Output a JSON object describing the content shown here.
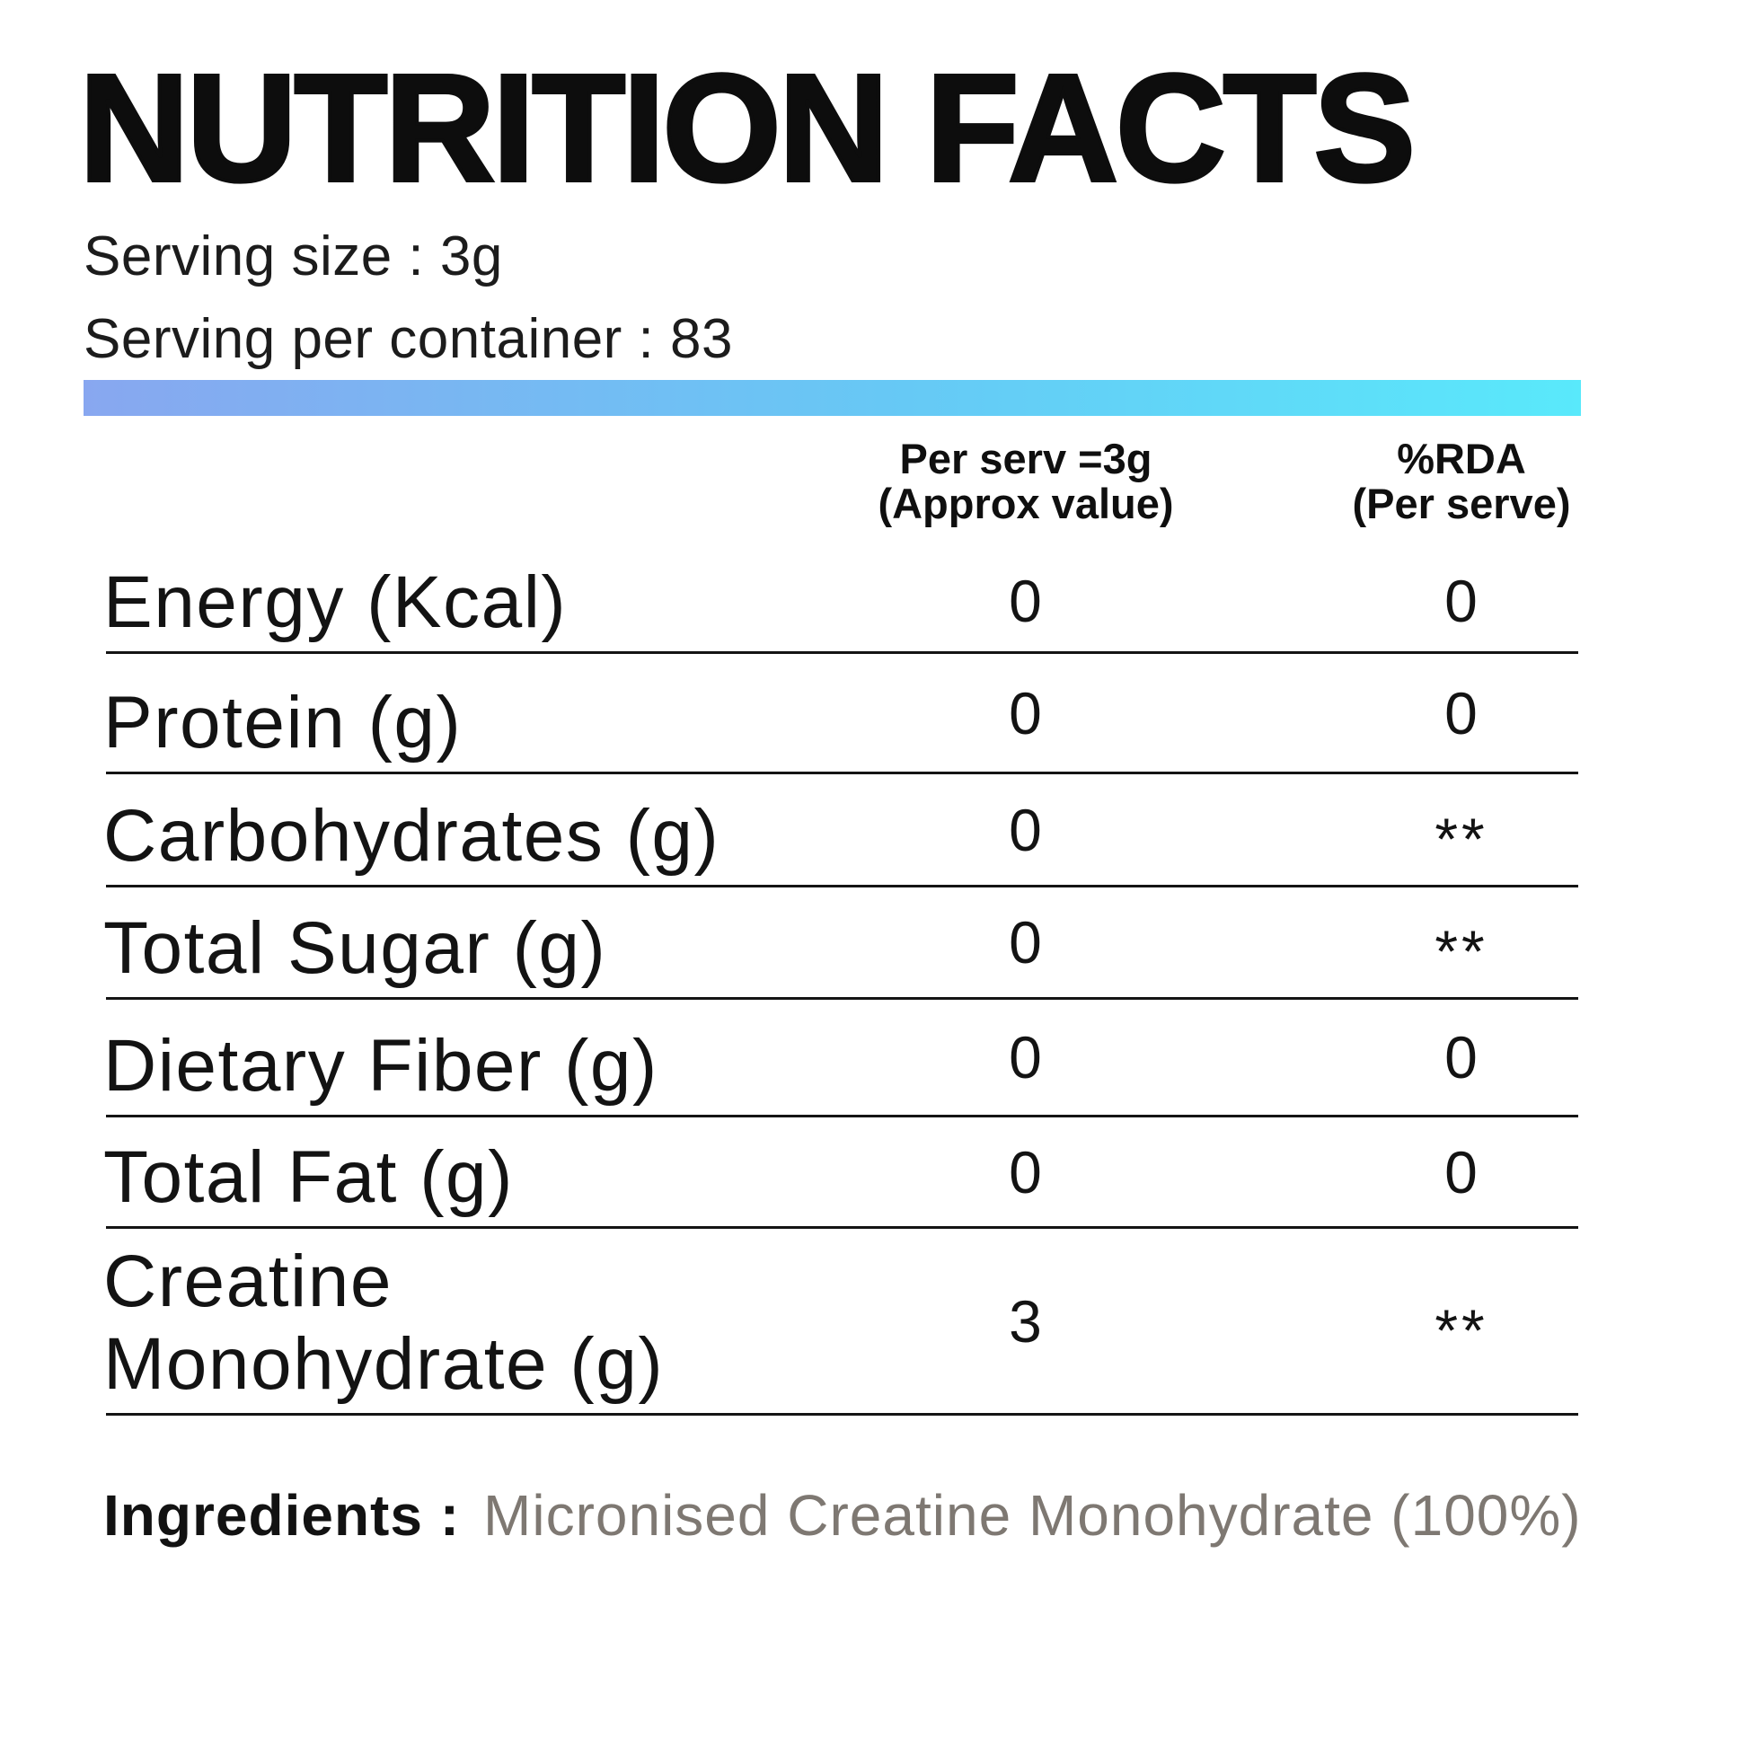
{
  "title": "NUTRITION FACTS",
  "serving": {
    "size": "Serving size : 3g",
    "per_container": "Serving per container : 83"
  },
  "table": {
    "col1_header": {
      "line1": "Per serv =3g",
      "line2": "(Approx value)"
    },
    "col2_header": {
      "line1": "%RDA",
      "line2": "(Per serve)"
    },
    "rows": [
      {
        "label": "Energy (Kcal)",
        "per_serv": "0",
        "rda": "0"
      },
      {
        "label": "Protein (g)",
        "per_serv": "0",
        "rda": "0"
      },
      {
        "label": "Carbohydrates (g)",
        "per_serv": "0",
        "rda": "**"
      },
      {
        "label": "Total Sugar (g)",
        "per_serv": "0",
        "rda": "**"
      },
      {
        "label": "Dietary Fiber (g)",
        "per_serv": "0",
        "rda": "0"
      },
      {
        "label": "Total Fat (g)",
        "per_serv": "0",
        "rda": "0"
      },
      {
        "label": "Creatine Monohydrate (g)",
        "per_serv": "3",
        "rda": "**"
      }
    ]
  },
  "ingredients": {
    "label": "Ingredients :",
    "value": "Micronised Creatine Monohydrate (100%)"
  },
  "colors": {
    "text": "#0d0d0d",
    "ingredients_value": "#7e7872",
    "bar_gradient_start": "#88a7f0",
    "bar_gradient_mid": "#66c9f5",
    "bar_gradient_end": "#59e9fb"
  }
}
